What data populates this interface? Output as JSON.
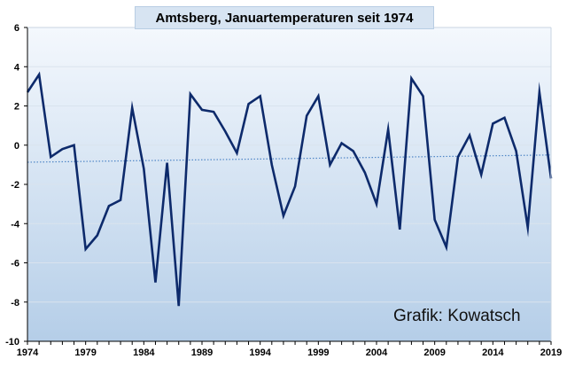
{
  "chart_data": {
    "type": "line",
    "title": "Amtsberg, Januartemperaturen seit 1974",
    "credit": "Grafik: Kowatsch",
    "xlabel": "",
    "ylabel": "",
    "x": [
      1974,
      1975,
      1976,
      1977,
      1978,
      1979,
      1980,
      1981,
      1982,
      1983,
      1984,
      1985,
      1986,
      1987,
      1988,
      1989,
      1990,
      1991,
      1992,
      1993,
      1994,
      1995,
      1996,
      1997,
      1998,
      1999,
      2000,
      2001,
      2002,
      2003,
      2004,
      2005,
      2006,
      2007,
      2008,
      2009,
      2010,
      2011,
      2012,
      2013,
      2014,
      2015,
      2016,
      2017,
      2018,
      2019
    ],
    "series": [
      {
        "values": [
          2.7,
          3.6,
          -0.6,
          -0.2,
          0.0,
          -5.3,
          -4.6,
          -3.1,
          -2.8,
          1.9,
          -1.2,
          -7.0,
          -0.9,
          -8.2,
          2.6,
          1.8,
          1.7,
          0.7,
          -0.4,
          2.1,
          2.5,
          -1.0,
          -3.6,
          -2.1,
          1.5,
          2.5,
          -1.0,
          0.1,
          -0.3,
          -1.4,
          -3.0,
          0.8,
          -4.3,
          3.4,
          2.5,
          -3.8,
          -5.2,
          -0.6,
          0.5,
          -1.5,
          1.1,
          1.4,
          -0.3,
          -4.2,
          2.7,
          -1.7
        ],
        "color": "#0d2a6b"
      }
    ],
    "trend": {
      "start": -0.87,
      "end": -0.5,
      "color": "#4f86c6",
      "style": "dotted"
    },
    "ylim": [
      -10,
      6
    ],
    "yticks": [
      "6",
      "4",
      "2",
      "0",
      "-2",
      "-4",
      "-6",
      "-8",
      "-10"
    ],
    "xticks": [
      "1974",
      "1979",
      "1984",
      "1989",
      "1994",
      "1999",
      "2004",
      "2009",
      "2014",
      "2019"
    ],
    "grid": "horizontal",
    "legend": "none",
    "colors": {
      "gradient_top": "#f4f8fd",
      "gradient_bottom": "#b5cee8",
      "gridline": "#d9e3ee",
      "axis": "#000000"
    }
  }
}
